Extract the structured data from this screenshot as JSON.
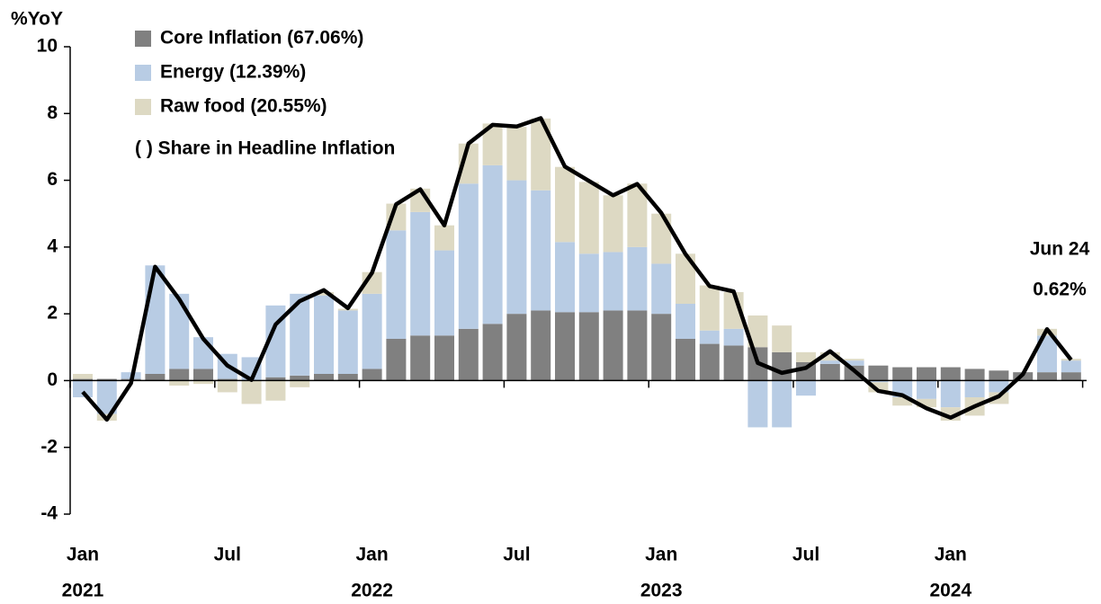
{
  "chart_data": {
    "type": "stacked-bar-line",
    "y_axis_label": "%YoY",
    "note": "( ) Share in Headline Inflation",
    "annotation": [
      "Jun 24",
      "0.62%"
    ],
    "categories": [
      "Jan",
      null,
      null,
      null,
      null,
      null,
      "Jul",
      null,
      null,
      null,
      null,
      null,
      "Jan",
      null,
      null,
      null,
      null,
      null,
      "Jul",
      null,
      null,
      null,
      null,
      null,
      "Jan",
      null,
      null,
      null,
      null,
      null,
      "Jul",
      null,
      null,
      null,
      null,
      null,
      "Jan",
      null,
      null,
      null,
      null,
      null
    ],
    "year_labels": [
      "2021",
      "2022",
      "2023",
      "2024"
    ],
    "ylim": [
      -4,
      10
    ],
    "yticks": [
      -4,
      -2,
      0,
      2,
      4,
      6,
      8,
      10
    ],
    "series": [
      {
        "name": "Core Inflation (67.06%)",
        "color": "#808080",
        "kind": "bar",
        "values": [
          0.05,
          0.05,
          0.05,
          0.2,
          0.35,
          0.35,
          0.05,
          0.0,
          0.1,
          0.15,
          0.2,
          0.2,
          0.35,
          1.25,
          1.35,
          1.35,
          1.55,
          1.7,
          2.0,
          2.1,
          2.05,
          2.05,
          2.1,
          2.1,
          2.0,
          1.25,
          1.1,
          1.05,
          1.0,
          0.85,
          0.55,
          0.5,
          0.45,
          0.45,
          0.4,
          0.4,
          0.4,
          0.35,
          0.3,
          0.25,
          0.25,
          0.25
        ]
      },
      {
        "name": "Energy (12.39%)",
        "color": "#b8cce4",
        "kind": "bar",
        "values": [
          -0.5,
          -1.0,
          0.2,
          3.25,
          2.25,
          0.95,
          0.75,
          0.7,
          2.15,
          2.45,
          2.35,
          1.9,
          2.25,
          3.25,
          3.7,
          2.55,
          4.35,
          4.75,
          4.0,
          3.6,
          2.1,
          1.75,
          1.75,
          1.9,
          1.5,
          1.05,
          0.4,
          0.5,
          -1.4,
          -1.4,
          -0.45,
          0.1,
          0.15,
          -0.05,
          -0.5,
          -0.55,
          -0.8,
          -0.5,
          -0.35,
          0.0,
          1.1,
          0.35
        ]
      },
      {
        "name": "Raw food (20.55%)",
        "color": "#ddd9c3",
        "kind": "bar",
        "values": [
          0.15,
          -0.2,
          0.0,
          0.0,
          -0.15,
          -0.1,
          -0.35,
          -0.7,
          -0.6,
          -0.2,
          0.1,
          0.05,
          0.65,
          0.8,
          0.7,
          0.75,
          1.2,
          1.25,
          1.6,
          2.15,
          2.25,
          2.15,
          1.7,
          1.9,
          1.5,
          1.5,
          1.35,
          1.1,
          0.95,
          0.8,
          0.3,
          0.25,
          0.05,
          -0.3,
          -0.25,
          -0.25,
          -0.4,
          -0.55,
          -0.35,
          0.0,
          0.2,
          0.05
        ]
      },
      {
        "color": "#000000",
        "kind": "line",
        "values": [
          -0.34,
          -1.17,
          -0.08,
          3.41,
          2.44,
          1.25,
          0.45,
          0.02,
          1.68,
          2.38,
          2.71,
          2.17,
          3.23,
          5.28,
          5.73,
          4.65,
          7.1,
          7.66,
          7.61,
          7.86,
          6.41,
          5.98,
          5.55,
          5.89,
          5.02,
          3.79,
          2.83,
          2.67,
          0.53,
          0.23,
          0.38,
          0.88,
          0.3,
          -0.31,
          -0.44,
          -0.83,
          -1.11,
          -0.77,
          -0.47,
          0.19,
          1.54,
          0.62
        ]
      }
    ]
  }
}
